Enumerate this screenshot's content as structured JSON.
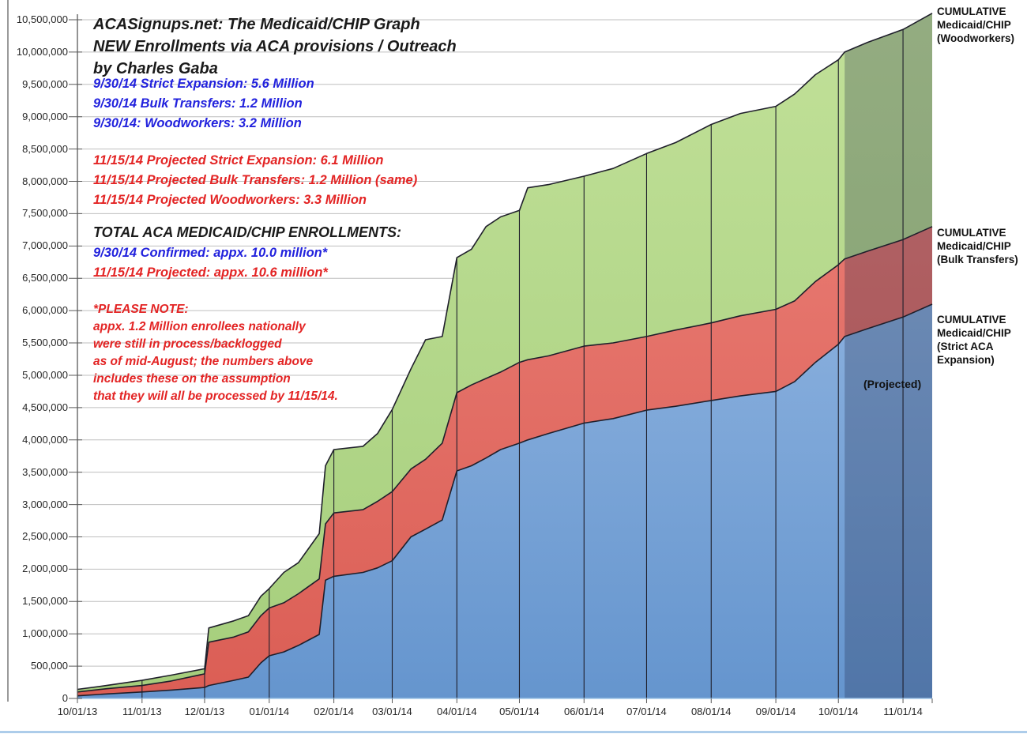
{
  "header": {
    "title_lines": [
      "ACASignups.net: The Medicaid/CHIP Graph",
      "NEW Enrollments via ACA provisions / Outreach",
      "by Charles Gaba"
    ],
    "confirmed_lines": [
      "9/30/14 Strict Expansion: 5.6 Million",
      "9/30/14 Bulk Transfers: 1.2 Million",
      "9/30/14: Woodworkers: 3.2 Million"
    ],
    "projected_lines": [
      "11/15/14 Projected Strict Expansion: 6.1 Million",
      "11/15/14 Projected Bulk Transfers: 1.2 Million (same)",
      "11/15/14 Projected Woodworkers: 3.3 Million"
    ],
    "totals_header": "TOTAL ACA MEDICAID/CHIP ENROLLMENTS:",
    "totals_confirmed": "9/30/14 Confirmed: appx. 10.0 million*",
    "totals_projected": "11/15/14 Projected: appx. 10.6 million*",
    "note_lines": [
      "*PLEASE NOTE:",
      "appx. 1.2 Million enrollees nationally",
      "were still in process/backlogged",
      "as of mid-August; the numbers above",
      "includes these on the assumption",
      "that they will all be processed by 11/15/14."
    ]
  },
  "series_labels": {
    "woodworkers": [
      "CUMULATIVE",
      "Medicaid/CHIP",
      "(Woodworkers)"
    ],
    "bulk": [
      "CUMULATIVE",
      "Medicaid/CHIP",
      "(Bulk Transfers)"
    ],
    "strict": [
      "CUMULATIVE",
      "Medicaid/CHIP",
      "(Strict ACA",
      "Expansion)"
    ]
  },
  "projected_label": "(Projected)",
  "colors": {
    "strict_fill_top": "#A3C2E8",
    "strict_fill_bottom": "#6595CE",
    "bulk_fill_top": "#EC837B",
    "bulk_fill_bottom": "#DB5E55",
    "woodworkers_fill_top": "#C1E098",
    "woodworkers_fill_bottom": "#A5CE7C",
    "boundary_line": "#1F1F2B",
    "gridline": "#BFBFBF",
    "axis": "#595959",
    "x_axis_line": "#9DC3E6",
    "left_border": "#9A9A9A",
    "projected_overlay": "rgba(25,35,65,0.27)",
    "text_blue": "#2222DD",
    "text_red": "#E32424",
    "text_black": "#1A1A1A"
  },
  "chart_data": {
    "type": "area",
    "stacked": true,
    "title": "ACASignups.net: The Medicaid/CHIP Graph — NEW Enrollments via ACA provisions / Outreach",
    "x_axis": {
      "start_date": "10/01/13",
      "end_date": "11/15/14",
      "domain_days": [
        0,
        410
      ],
      "tick_labels": [
        "10/01/13",
        "11/01/13",
        "12/01/13",
        "01/01/14",
        "02/01/14",
        "03/01/14",
        "04/01/14",
        "05/01/14",
        "06/01/14",
        "07/01/14",
        "08/01/14",
        "09/01/14",
        "10/01/14",
        "11/01/14"
      ],
      "tick_days": [
        0,
        31,
        61,
        92,
        123,
        151,
        182,
        212,
        243,
        273,
        304,
        335,
        365,
        396
      ]
    },
    "y_axis": {
      "min": 0,
      "max": 10500000,
      "tick_step": 500000,
      "tick_labels": [
        "0",
        "500,000",
        "1,000,000",
        "1,500,000",
        "2,000,000",
        "2,500,000",
        "3,000,000",
        "3,500,000",
        "4,000,000",
        "4,500,000",
        "5,000,000",
        "5,500,000",
        "6,000,000",
        "6,500,000",
        "7,000,000",
        "7,500,000",
        "8,000,000",
        "8,500,000",
        "9,000,000",
        "9,500,000",
        "10,000,000",
        "10,500,000"
      ]
    },
    "grid": true,
    "legend_position": "right-edge-labels",
    "values_are": "cumulative stack tops (enrollees)",
    "points_days": [
      0,
      14,
      31,
      45,
      61,
      63,
      75,
      82,
      88,
      92,
      99,
      106,
      116,
      119,
      123,
      137,
      144,
      151,
      160,
      167,
      175,
      182,
      189,
      196,
      203,
      212,
      216,
      226,
      243,
      257,
      273,
      287,
      304,
      318,
      335,
      344,
      354,
      365,
      368,
      379,
      396,
      410
    ],
    "series": [
      {
        "name": "Cumulative Medicaid/CHIP (Strict ACA Expansion)",
        "cumulative_values": [
          40000,
          70000,
          100000,
          130000,
          170000,
          200000,
          280000,
          330000,
          550000,
          660000,
          720000,
          820000,
          990000,
          1830000,
          1890000,
          1950000,
          2020000,
          2130000,
          2500000,
          2620000,
          2760000,
          3520000,
          3600000,
          3720000,
          3850000,
          3950000,
          4000000,
          4100000,
          4260000,
          4330000,
          4460000,
          4520000,
          4610000,
          4680000,
          4750000,
          4900000,
          5200000,
          5480000,
          5600000,
          5720000,
          5900000,
          6100000
        ]
      },
      {
        "name": "Cumulative Medicaid/CHIP (Bulk Transfers)",
        "cumulative_values": [
          100000,
          150000,
          200000,
          270000,
          380000,
          870000,
          950000,
          1030000,
          1280000,
          1400000,
          1480000,
          1620000,
          1850000,
          2700000,
          2870000,
          2920000,
          3050000,
          3200000,
          3550000,
          3700000,
          3950000,
          4730000,
          4850000,
          4950000,
          5050000,
          5200000,
          5240000,
          5300000,
          5450000,
          5500000,
          5600000,
          5700000,
          5810000,
          5920000,
          6020000,
          6150000,
          6450000,
          6710000,
          6800000,
          6920000,
          7100000,
          7300000
        ]
      },
      {
        "name": "Cumulative Medicaid/CHIP (Woodworkers)",
        "cumulative_values": [
          140000,
          200000,
          280000,
          360000,
          460000,
          1090000,
          1200000,
          1280000,
          1580000,
          1700000,
          1950000,
          2100000,
          2550000,
          3600000,
          3850000,
          3900000,
          4100000,
          4470000,
          5100000,
          5550000,
          5600000,
          6820000,
          6950000,
          7300000,
          7450000,
          7550000,
          7900000,
          7950000,
          8080000,
          8200000,
          8430000,
          8600000,
          8880000,
          9050000,
          9160000,
          9350000,
          9650000,
          9880000,
          10000000,
          10150000,
          10350000,
          10600000
        ]
      }
    ],
    "key_values": {
      "confirmed_9_30_14": {
        "strict_expansion": 5600000,
        "bulk_transfers": 1200000,
        "woodworkers": 3200000,
        "total": 10000000
      },
      "projected_11_15_14": {
        "strict_expansion": 6100000,
        "bulk_transfers": 1200000,
        "woodworkers": 3300000,
        "total": 10600000
      }
    },
    "projected": {
      "start_day": 368,
      "end_day": 410,
      "label": "(Projected)"
    }
  }
}
